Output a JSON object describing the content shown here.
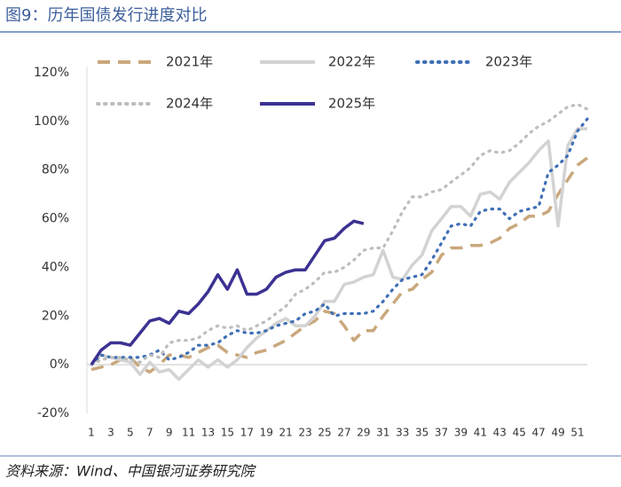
{
  "title": "图9：历年国债发行进度对比",
  "source": "资料来源：Wind、中国银河证券研究院",
  "chart_data": {
    "type": "line",
    "categories": [
      1,
      null,
      3,
      null,
      5,
      null,
      7,
      null,
      9,
      null,
      11,
      null,
      13,
      null,
      15,
      null,
      17,
      null,
      19,
      null,
      21,
      null,
      23,
      null,
      25,
      null,
      27,
      null,
      29,
      null,
      31,
      null,
      33,
      null,
      35,
      null,
      37,
      null,
      39,
      null,
      41,
      null,
      43,
      null,
      45,
      null,
      47,
      null,
      49,
      null,
      51,
      null
    ],
    "ylim": [
      -20,
      120
    ],
    "yticks": [
      {
        "value": -20,
        "label": "-20%"
      },
      {
        "value": 0,
        "label": "0%"
      },
      {
        "value": 20,
        "label": "20%"
      },
      {
        "value": 40,
        "label": "40%"
      },
      {
        "value": 60,
        "label": "60%"
      },
      {
        "value": 80,
        "label": "80%"
      },
      {
        "value": 100,
        "label": "100%"
      },
      {
        "value": 120,
        "label": "120%"
      }
    ],
    "series": [
      {
        "name": "2021年",
        "color": "#c9a87c",
        "dash": "dashed",
        "values": [
          -2,
          -1,
          0,
          2,
          3,
          -1,
          -3,
          0,
          4,
          4,
          3,
          5,
          7,
          8,
          5,
          4,
          3,
          5,
          6,
          8,
          10,
          13,
          16,
          18,
          22,
          21,
          16,
          10,
          14,
          14,
          20,
          25,
          30,
          31,
          35,
          38,
          45,
          48,
          48,
          49,
          49,
          50,
          52,
          56,
          58,
          61,
          61,
          63,
          70,
          76,
          82,
          85
        ]
      },
      {
        "name": "2022年",
        "color": "#d3d3d3",
        "dash": "solid",
        "values": [
          0,
          4,
          3,
          2,
          1,
          -4,
          1,
          -3,
          -2,
          -6,
          -2,
          2,
          -1,
          2,
          -1,
          2,
          7,
          11,
          14,
          17,
          19,
          16,
          16,
          20,
          26,
          26,
          33,
          34,
          36,
          37,
          47,
          36,
          35,
          41,
          45,
          55,
          60,
          65,
          65,
          61,
          70,
          71,
          68,
          75,
          79,
          83,
          88,
          92,
          57,
          90,
          97,
          97
        ]
      },
      {
        "name": "2023年",
        "color": "#3f6fb5",
        "dash": "dotted",
        "values": [
          0,
          4,
          3,
          3,
          3,
          3,
          4,
          6,
          2,
          3,
          5,
          8,
          8,
          9,
          12,
          14,
          13,
          13,
          14,
          16,
          17,
          18,
          21,
          22,
          25,
          20,
          21,
          21,
          21,
          22,
          26,
          31,
          35,
          36,
          37,
          43,
          50,
          57,
          58,
          57,
          63,
          64,
          64,
          60,
          63,
          64,
          65,
          79,
          82,
          86,
          96,
          101
        ]
      },
      {
        "name": "2024年",
        "color": "#bdbdbd",
        "dash": "dotted",
        "values": [
          0,
          2,
          3,
          3,
          2,
          1,
          4,
          3,
          9,
          10,
          10,
          11,
          14,
          16,
          15,
          16,
          14,
          16,
          18,
          21,
          24,
          29,
          31,
          34,
          38,
          38,
          40,
          43,
          47,
          48,
          48,
          55,
          63,
          69,
          69,
          71,
          72,
          75,
          78,
          81,
          86,
          88,
          87,
          88,
          91,
          95,
          98,
          100,
          103,
          106,
          107,
          105
        ]
      },
      {
        "name": "2025年",
        "color": "#3b3292",
        "dash": "solid",
        "values": [
          0,
          6,
          9,
          9,
          8,
          13,
          18,
          19,
          17,
          22,
          21,
          25,
          30,
          37,
          31,
          39,
          29,
          29,
          31,
          36,
          38,
          39,
          39,
          45,
          51,
          52,
          56,
          59,
          58,
          null,
          null,
          null,
          null,
          null,
          null,
          null,
          null,
          null,
          null,
          null,
          null,
          null,
          null,
          null,
          null,
          null,
          null,
          null,
          null,
          null,
          null,
          null
        ]
      }
    ]
  }
}
